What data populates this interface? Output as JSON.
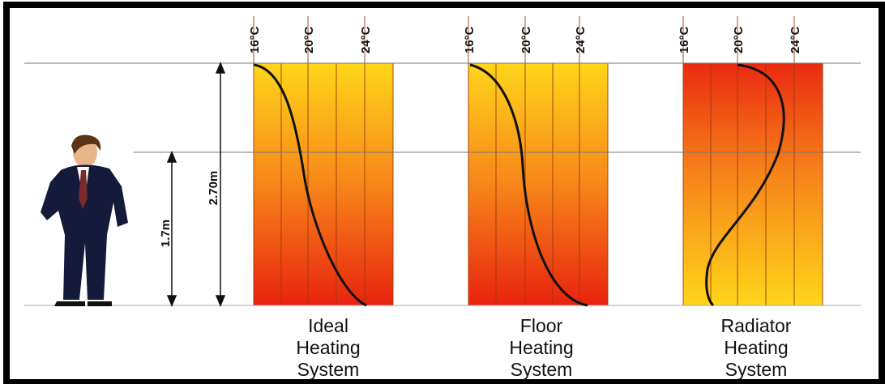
{
  "labels": {
    "room_height": "2.70m",
    "person_height": "1.7m"
  },
  "systems": [
    {
      "name_lines": [
        "Ideal",
        "Heating",
        "System"
      ],
      "ticks": [
        "16°C",
        "20°C",
        "24°C"
      ]
    },
    {
      "name_lines": [
        "Floor",
        "Heating",
        "System"
      ],
      "ticks": [
        "16°C",
        "20°C",
        "24°C"
      ]
    },
    {
      "name_lines": [
        "Radiator",
        "Heating",
        "System"
      ],
      "ticks": [
        "16°C",
        "20°C",
        "24°C"
      ]
    }
  ]
}
